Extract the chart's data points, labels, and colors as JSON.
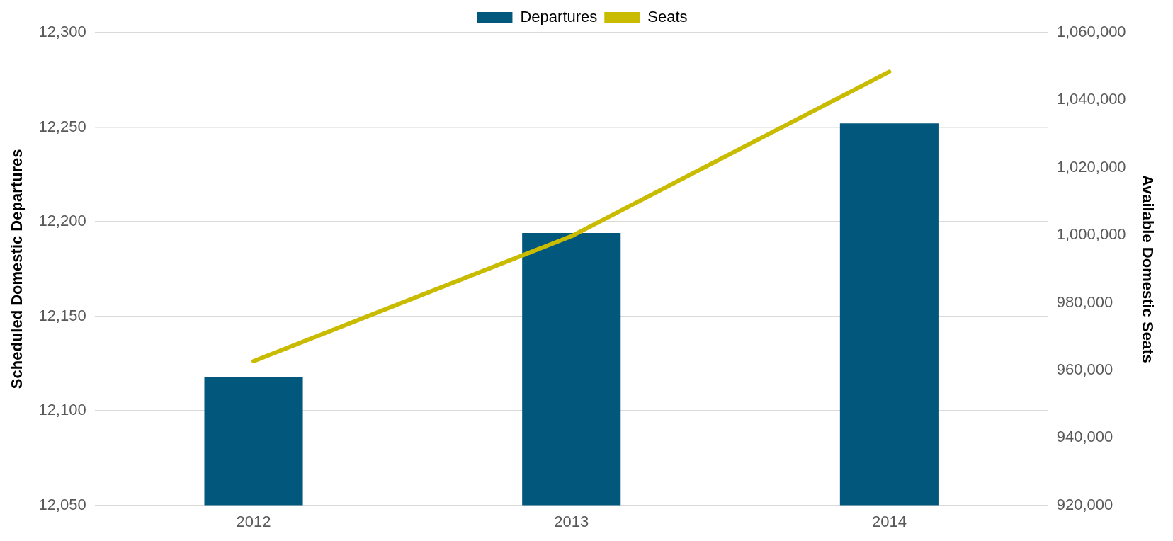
{
  "chart_data": {
    "type": "bar",
    "ylabel": "Scheduled Domestic Departures",
    "y2label": "Available Domestic Seats",
    "categories": [
      "2012",
      "2013",
      "2014"
    ],
    "series": [
      {
        "name": "Departures",
        "color": "#02587c",
        "values": [
          12118,
          12194,
          12252
        ]
      },
      {
        "name": "Seats",
        "type": "line",
        "axis": "y2",
        "color": "#c9bb00",
        "values": [
          962700,
          999700,
          1048400
        ]
      }
    ],
    "ylim": [
      12050,
      12300
    ],
    "yticks": [
      {
        "value": 12050,
        "label": "12,050"
      },
      {
        "value": 12100,
        "label": "12,100"
      },
      {
        "value": 12150,
        "label": "12,150"
      },
      {
        "value": 12200,
        "label": "12,200"
      },
      {
        "value": 12250,
        "label": "12,250"
      },
      {
        "value": 12300,
        "label": "12,300"
      }
    ],
    "y2lim": [
      920000,
      1060000
    ],
    "y2ticks": [
      {
        "value": 920000,
        "label": "920,000"
      },
      {
        "value": 940000,
        "label": "940,000"
      },
      {
        "value": 960000,
        "label": "960,000"
      },
      {
        "value": 980000,
        "label": "980,000"
      },
      {
        "value": 1000000,
        "label": "1,000,000"
      },
      {
        "value": 1020000,
        "label": "1,020,000"
      },
      {
        "value": 1040000,
        "label": "1,040,000"
      },
      {
        "value": 1060000,
        "label": "1,060,000"
      }
    ],
    "grid": "y",
    "legend": "top"
  }
}
